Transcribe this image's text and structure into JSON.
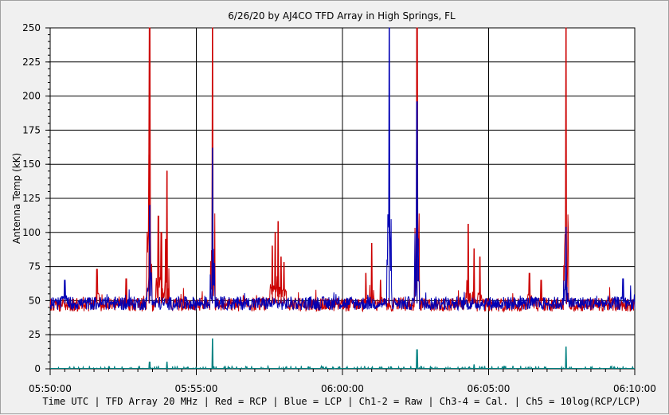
{
  "chart_data": {
    "type": "line",
    "title": "6/26/20  by  AJ4CO TFD Array  in  High Springs, FL",
    "ylabel": "Antenna Temp (kK)",
    "xlabel": "Time UTC | TFD Array 20 MHz | Red = RCP | Blue = LCP | Ch1-2 = Raw | Ch3-4 = Cal. | Ch5 = 10log(RCP/LCP)",
    "ylim": [
      0,
      250
    ],
    "y_ticks": [
      "0",
      "25",
      "50",
      "75",
      "100",
      "125",
      "150",
      "175",
      "200",
      "225",
      "250"
    ],
    "x_ticks": [
      "05:50:00",
      "05:55:00",
      "06:00:00",
      "06:05:00",
      "06:10:00"
    ],
    "xlim_minutes": [
      0,
      20
    ],
    "grid": true,
    "baseline_kK": 48,
    "noise_kK": 5,
    "series": [
      {
        "name": "Red = RCP",
        "color": "#cc0000",
        "spikes": [
          {
            "t": 3.4,
            "v": 250
          },
          {
            "t": 3.38,
            "v": 157
          },
          {
            "t": 3.7,
            "v": 112
          },
          {
            "t": 3.8,
            "v": 100
          },
          {
            "t": 4.0,
            "v": 145
          },
          {
            "t": 3.95,
            "v": 95
          },
          {
            "t": 5.55,
            "v": 250
          },
          {
            "t": 7.8,
            "v": 108
          },
          {
            "t": 7.7,
            "v": 100
          },
          {
            "t": 7.6,
            "v": 90
          },
          {
            "t": 7.9,
            "v": 82
          },
          {
            "t": 8.0,
            "v": 78
          },
          {
            "t": 11.0,
            "v": 92
          },
          {
            "t": 10.8,
            "v": 70
          },
          {
            "t": 11.3,
            "v": 65
          },
          {
            "t": 12.55,
            "v": 250
          },
          {
            "t": 14.3,
            "v": 106
          },
          {
            "t": 14.5,
            "v": 88
          },
          {
            "t": 14.7,
            "v": 82
          },
          {
            "t": 17.65,
            "v": 250
          },
          {
            "t": 1.6,
            "v": 73
          },
          {
            "t": 2.6,
            "v": 66
          },
          {
            "t": 16.4,
            "v": 70
          },
          {
            "t": 16.8,
            "v": 65
          }
        ]
      },
      {
        "name": "Blue = LCP",
        "color": "#0000b4",
        "spikes": [
          {
            "t": 3.4,
            "v": 120
          },
          {
            "t": 5.55,
            "v": 162
          },
          {
            "t": 11.6,
            "v": 250
          },
          {
            "t": 12.55,
            "v": 196
          },
          {
            "t": 17.65,
            "v": 104
          },
          {
            "t": 0.5,
            "v": 65
          },
          {
            "t": 19.6,
            "v": 66
          }
        ]
      },
      {
        "name": "Ch5 = 10log(RCP/LCP)",
        "color": "#008080",
        "spikes": [
          {
            "t": 5.55,
            "v": 22
          },
          {
            "t": 12.55,
            "v": 14
          },
          {
            "t": 17.65,
            "v": 16
          },
          {
            "t": 3.4,
            "v": 5
          },
          {
            "t": 4.0,
            "v": 5
          },
          {
            "t": 14.5,
            "v": 3
          }
        ]
      }
    ]
  }
}
